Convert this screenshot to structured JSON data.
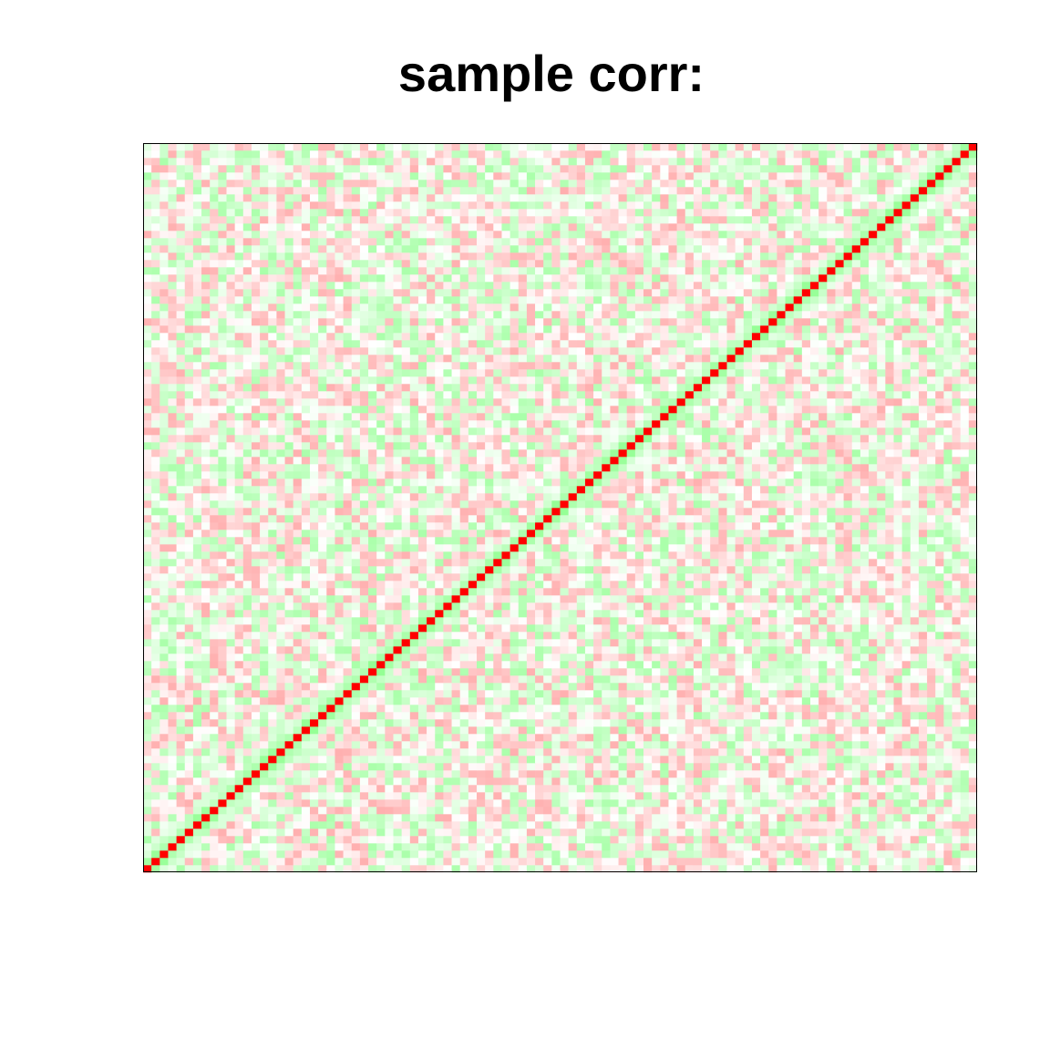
{
  "chart_data": {
    "type": "heatmap",
    "title": "sample corr:",
    "xlabel": "",
    "ylabel": "",
    "n": 100,
    "value_range": [
      -1,
      1
    ],
    "color_scale": {
      "negative": "#ff0000",
      "zero": "#ffffff",
      "positive": "#00ff00",
      "diagonal": "#ff0000"
    },
    "diagonal_value": 1,
    "band": {
      "offsets": [
        1,
        2
      ],
      "values": [
        0.55,
        0.3
      ]
    },
    "noise_amplitude": 0.55,
    "grid": false,
    "legend": "none",
    "axes_shown": false
  }
}
